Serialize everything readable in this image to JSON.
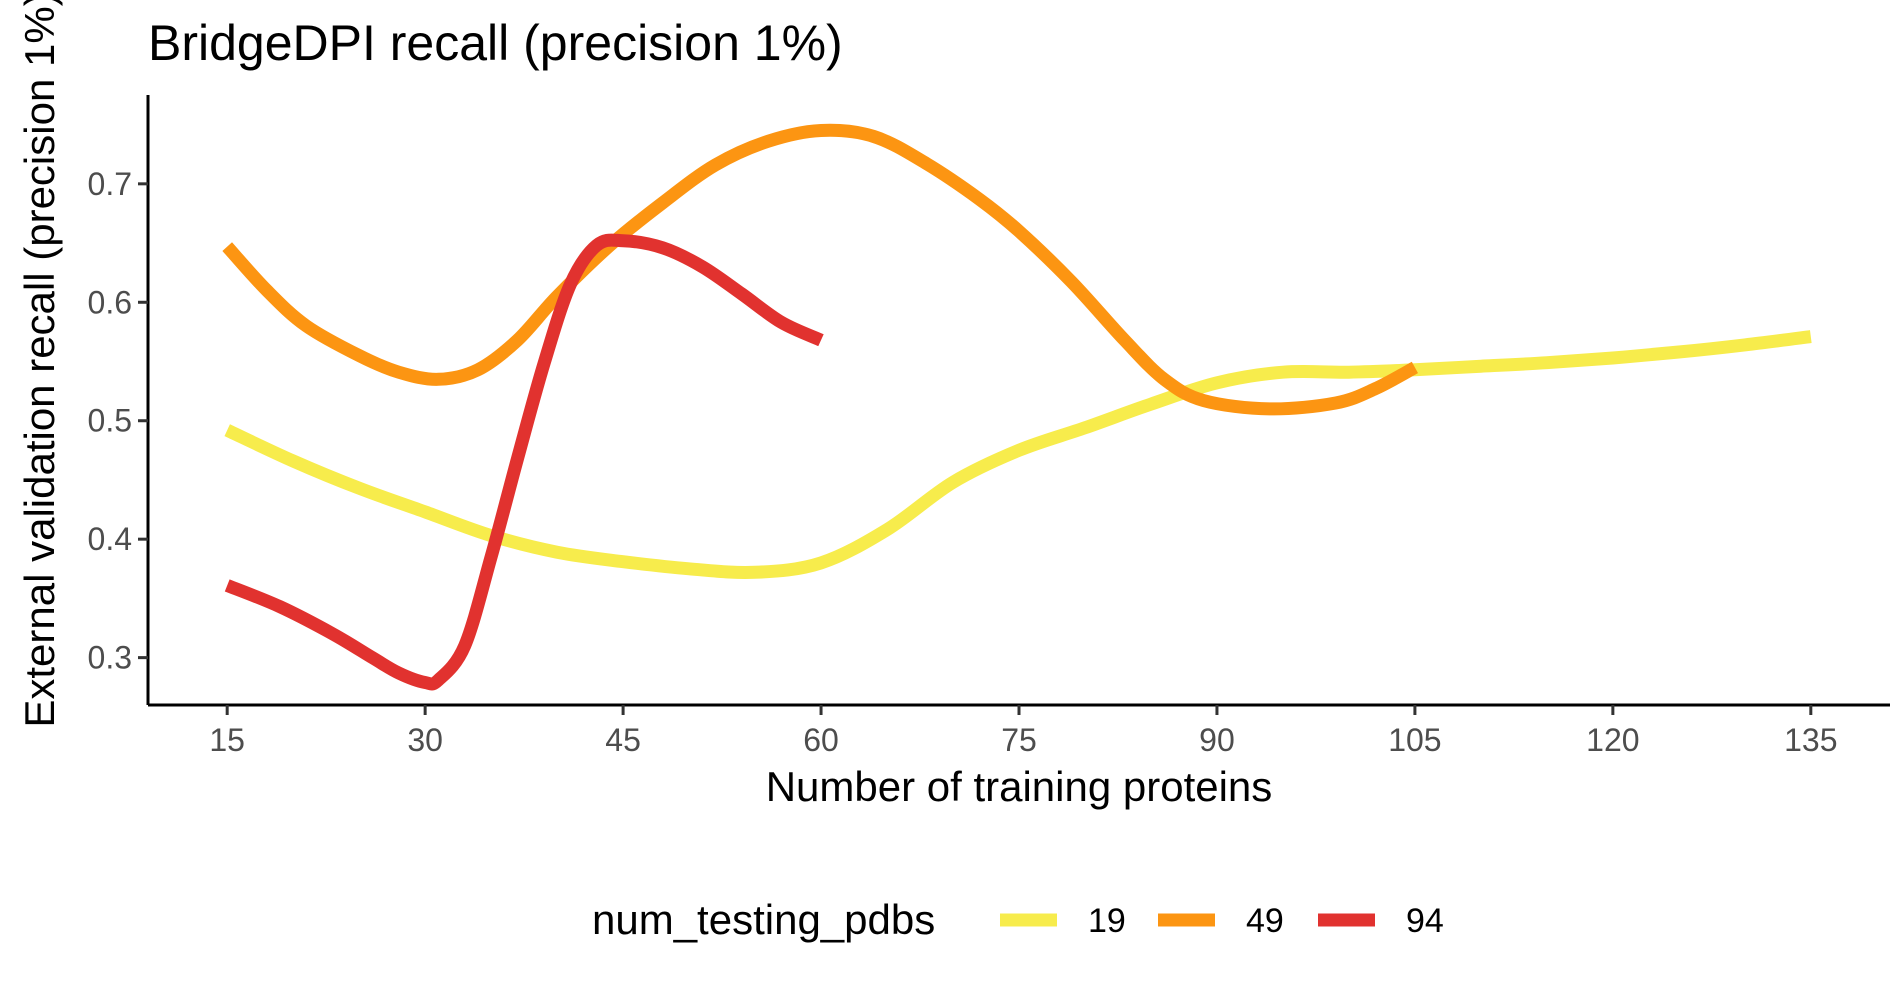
{
  "chart_data": {
    "type": "line",
    "title": "BridgeDPI recall (precision 1%)",
    "xlabel": "Number of training proteins",
    "ylabel": "External validation recall (precision 1%)",
    "xlim": [
      9,
      141
    ],
    "ylim": [
      0.26,
      0.775
    ],
    "x_ticks": [
      15,
      30,
      45,
      60,
      75,
      90,
      105,
      120,
      135
    ],
    "x_tick_labels": [
      "15",
      "30",
      "45",
      "60",
      "75",
      "90",
      "105",
      "120",
      "135"
    ],
    "y_ticks": [
      0.3,
      0.4,
      0.5,
      0.6,
      0.7
    ],
    "y_tick_labels": [
      "0.3",
      "0.4",
      "0.5",
      "0.6",
      "0.7"
    ],
    "grid": false,
    "legend": {
      "title": "num_testing_pdbs",
      "position": "bottom",
      "entries": [
        "19",
        "49",
        "94"
      ]
    },
    "series": [
      {
        "name": "19",
        "color": "#F7EC4C",
        "points": [
          [
            15,
            0.492
          ],
          [
            20,
            0.466
          ],
          [
            25,
            0.443
          ],
          [
            30,
            0.423
          ],
          [
            35,
            0.403
          ],
          [
            40,
            0.389
          ],
          [
            45,
            0.381
          ],
          [
            50,
            0.375
          ],
          [
            55,
            0.372
          ],
          [
            60,
            0.38
          ],
          [
            65,
            0.408
          ],
          [
            70,
            0.448
          ],
          [
            75,
            0.475
          ],
          [
            80,
            0.494
          ],
          [
            85,
            0.514
          ],
          [
            90,
            0.532
          ],
          [
            95,
            0.541
          ],
          [
            100,
            0.541
          ],
          [
            105,
            0.543
          ],
          [
            110,
            0.546
          ],
          [
            115,
            0.549
          ],
          [
            120,
            0.553
          ],
          [
            125,
            0.558
          ],
          [
            130,
            0.564
          ],
          [
            135,
            0.571
          ]
        ]
      },
      {
        "name": "49",
        "color": "#FC9512",
        "points": [
          [
            15,
            0.647
          ],
          [
            18,
            0.61
          ],
          [
            21,
            0.58
          ],
          [
            25,
            0.555
          ],
          [
            28,
            0.541
          ],
          [
            31,
            0.535
          ],
          [
            34,
            0.543
          ],
          [
            37,
            0.568
          ],
          [
            40,
            0.605
          ],
          [
            44,
            0.648
          ],
          [
            48,
            0.684
          ],
          [
            52,
            0.716
          ],
          [
            56,
            0.736
          ],
          [
            60,
            0.745
          ],
          [
            64,
            0.74
          ],
          [
            68,
            0.717
          ],
          [
            72,
            0.687
          ],
          [
            75,
            0.66
          ],
          [
            79,
            0.617
          ],
          [
            83,
            0.568
          ],
          [
            86,
            0.535
          ],
          [
            89,
            0.517
          ],
          [
            94,
            0.51
          ],
          [
            99,
            0.515
          ],
          [
            102,
            0.527
          ],
          [
            105,
            0.545
          ]
        ]
      },
      {
        "name": "94",
        "color": "#E1322F",
        "points": [
          [
            15,
            0.361
          ],
          [
            19,
            0.343
          ],
          [
            23,
            0.32
          ],
          [
            26,
            0.3
          ],
          [
            28,
            0.287
          ],
          [
            30,
            0.279
          ],
          [
            31,
            0.281
          ],
          [
            33,
            0.31
          ],
          [
            35,
            0.385
          ],
          [
            37,
            0.468
          ],
          [
            39,
            0.548
          ],
          [
            41,
            0.615
          ],
          [
            43,
            0.648
          ],
          [
            45,
            0.652
          ],
          [
            48,
            0.646
          ],
          [
            51,
            0.63
          ],
          [
            54,
            0.607
          ],
          [
            57,
            0.583
          ],
          [
            60,
            0.568
          ]
        ]
      }
    ]
  }
}
